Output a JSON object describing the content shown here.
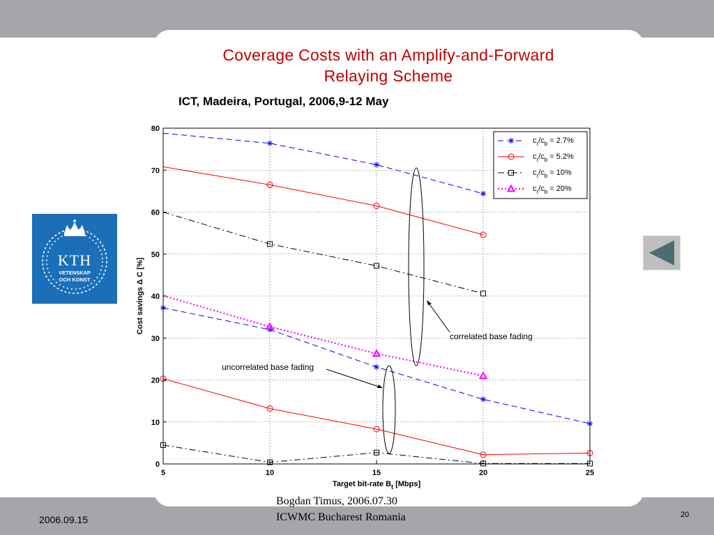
{
  "slide": {
    "title_line1": "Coverage Costs with an Amplify-and-Forward",
    "title_line2": "Relaying Scheme",
    "subtitle": "ICT, Madeira, Portugal, 2006,9-12 May",
    "footer_date": "2006.09.15",
    "footer_author": "Bogdan Timus,    2006.07.30",
    "footer_venue": "ICWMC Bucharest Romania",
    "page_number": "20",
    "logo": {
      "name": "KTH",
      "line1": "VETENSKAP",
      "line2": "OCH KONST"
    },
    "nav_icon": "back-triangle-icon",
    "colors": {
      "title": "#c00000",
      "logo_bg": "#1b6fb8",
      "band": "#a7a5a9"
    }
  },
  "chart_data": {
    "type": "line",
    "xlabel": "Target bit-rate B",
    "xlabel_sub": "t",
    "xlabel_unit": " [Mbps]",
    "ylabel": "Cost savings   Δ C [%]",
    "xlim": [
      5,
      25
    ],
    "ylim": [
      0,
      80
    ],
    "xticks": [
      5,
      10,
      15,
      20,
      25
    ],
    "yticks": [
      0,
      10,
      20,
      30,
      40,
      50,
      60,
      70,
      80
    ],
    "grid": true,
    "legend_position": "top-right",
    "series": [
      {
        "name": "c/c = 2.7%",
        "ratio": "2.7%",
        "color": "#0000ff",
        "dash": "8,5",
        "marker": "star",
        "curves": [
          {
            "x": [
              5,
              10,
              15,
              20
            ],
            "y": [
              78.8,
              76.4,
              71.3,
              64.4
            ],
            "markers": [
              [
                10,
                76.4
              ],
              [
                15,
                71.3
              ],
              [
                20,
                64.4
              ]
            ]
          },
          {
            "x": [
              5,
              10,
              15,
              20,
              25
            ],
            "y": [
              37.2,
              32.0,
              23.1,
              15.4,
              9.6
            ],
            "markers": [
              [
                5,
                37.2
              ],
              [
                10,
                32.0
              ],
              [
                15,
                23.1
              ],
              [
                20,
                15.4
              ],
              [
                25,
                9.6
              ]
            ]
          }
        ]
      },
      {
        "name": "c/c = 5.2%",
        "ratio": "5.2%",
        "color": "#ff0000",
        "dash": "",
        "marker": "circle",
        "curves": [
          {
            "x": [
              5,
              10,
              15,
              20
            ],
            "y": [
              70.8,
              66.5,
              61.5,
              54.6
            ],
            "markers": [
              [
                10,
                66.5
              ],
              [
                15,
                61.5
              ],
              [
                20,
                54.6
              ]
            ]
          },
          {
            "x": [
              5,
              10,
              15,
              20,
              25
            ],
            "y": [
              20.3,
              13.2,
              8.3,
              2.2,
              2.6
            ],
            "markers": [
              [
                5,
                20.3
              ],
              [
                10,
                13.2
              ],
              [
                15,
                8.3
              ],
              [
                20,
                2.2
              ],
              [
                25,
                2.6
              ]
            ]
          }
        ]
      },
      {
        "name": "c/c = 10%",
        "ratio": "10%",
        "color": "#000000",
        "dash": "9,4,2,4",
        "marker": "square",
        "curves": [
          {
            "x": [
              5,
              10,
              15,
              20
            ],
            "y": [
              60.0,
              52.4,
              47.2,
              40.6
            ],
            "markers": [
              [
                10,
                52.4
              ],
              [
                15,
                47.2
              ],
              [
                20,
                40.6
              ]
            ]
          },
          {
            "x": [
              5,
              10,
              15,
              20,
              25
            ],
            "y": [
              4.5,
              0.4,
              2.7,
              0.1,
              0.1
            ],
            "markers": [
              [
                5,
                4.5
              ],
              [
                10,
                0.4
              ],
              [
                15,
                2.7
              ],
              [
                20,
                0.1
              ],
              [
                25,
                0.1
              ]
            ]
          }
        ]
      },
      {
        "name": "c/c = 20%",
        "ratio": "20%",
        "color": "#ff00ff",
        "dash": "2,3",
        "marker": "triangle",
        "curves": [
          {
            "x": [
              5,
              10,
              15,
              20
            ],
            "y": [
              40.1,
              32.7,
              26.3,
              21.0
            ],
            "markers": [
              [
                10,
                32.7
              ],
              [
                15,
                26.3
              ],
              [
                20,
                21.0
              ]
            ]
          }
        ]
      }
    ],
    "annotations": [
      {
        "text": "correlated base fading",
        "x": 18.5,
        "y": 29.2
      },
      {
        "text": "uncorrelated base fading",
        "x": 8.5,
        "y": 22.5
      }
    ]
  }
}
